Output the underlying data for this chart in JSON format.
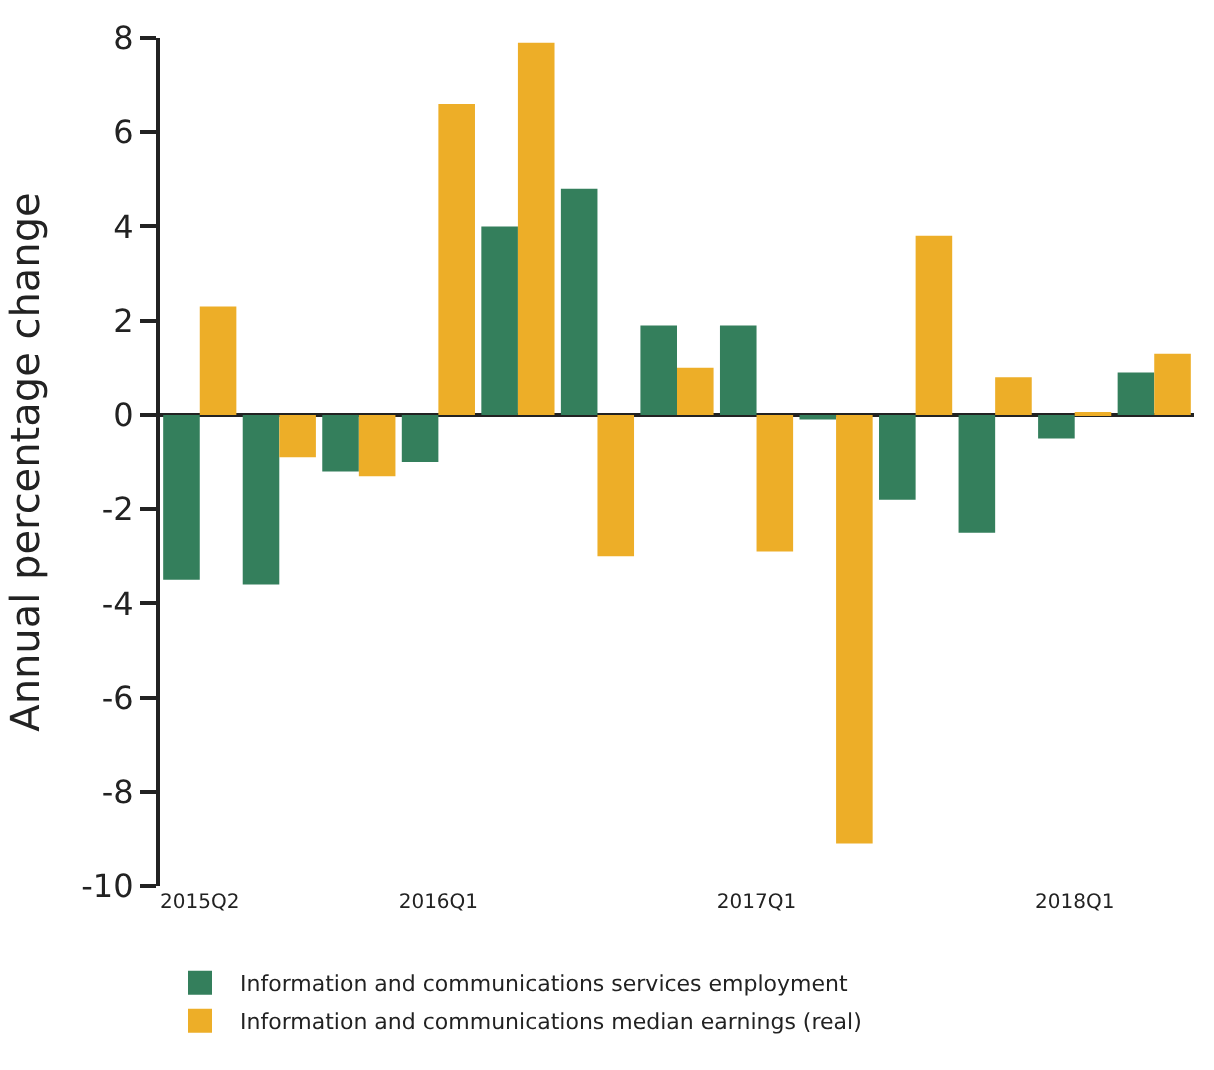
{
  "chart_data": {
    "type": "bar",
    "ylabel": "Annual percentage change",
    "categories": [
      "2015Q2",
      null,
      null,
      "2016Q1",
      null,
      null,
      null,
      "2017Q1",
      null,
      null,
      null,
      "2018Q1",
      null
    ],
    "series": [
      {
        "name": "Information and communications services employment",
        "color": "#347f5c",
        "values": [
          -3.5,
          -3.6,
          -1.2,
          -1.0,
          4.0,
          4.8,
          1.9,
          1.9,
          -0.1,
          -1.8,
          -2.5,
          -0.5,
          0.9
        ]
      },
      {
        "name": "Information and communications median earnings (real)",
        "color": "#edae28",
        "values": [
          2.3,
          -0.9,
          -1.3,
          6.6,
          7.9,
          -3.0,
          1.0,
          -2.9,
          -9.1,
          3.8,
          0.8,
          0.05,
          1.3
        ]
      }
    ],
    "ylim": [
      -10,
      8
    ],
    "yticks": [
      -10,
      -8,
      -6,
      -4,
      -2,
      0,
      2,
      4,
      6,
      8
    ],
    "legend": "bottom"
  }
}
